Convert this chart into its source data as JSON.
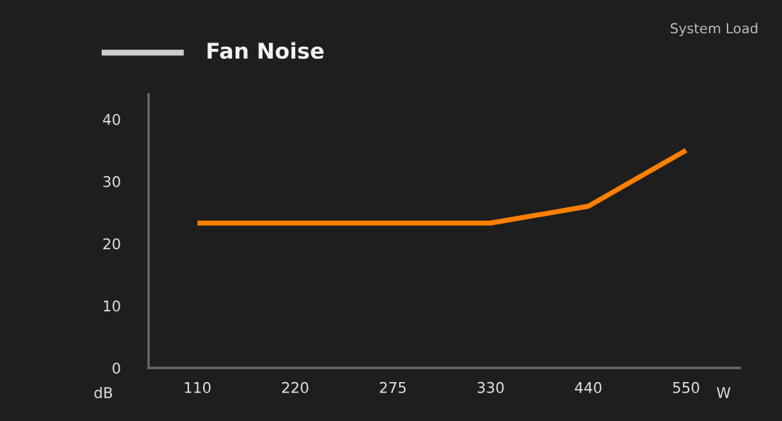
{
  "chart_data": {
    "type": "line",
    "title": "Fan Noise",
    "xlabel": "W",
    "ylabel": "dB",
    "annotations": [
      "System Load"
    ],
    "categories": [
      "110",
      "220",
      "275",
      "330",
      "440",
      "550"
    ],
    "series": [
      {
        "color": "#ff8000",
        "values": [
          23.3,
          23.3,
          23.3,
          23.3,
          26,
          35
        ]
      }
    ],
    "ylim": [
      0,
      44
    ],
    "yticks": [
      0,
      10,
      20,
      30,
      40
    ],
    "grid": false,
    "legend": false,
    "marker": "none",
    "line_style": "solid"
  }
}
